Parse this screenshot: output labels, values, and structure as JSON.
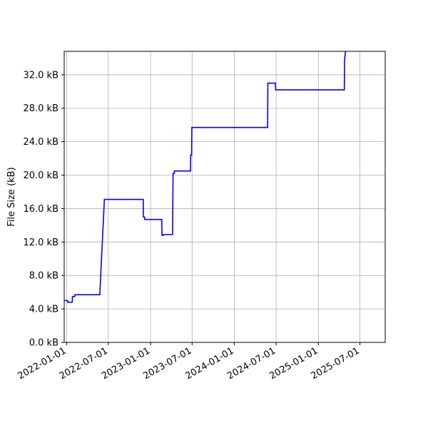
{
  "chart_data": {
    "type": "line",
    "title": "",
    "xlabel": "",
    "ylabel": "File Size (kB)",
    "x_scale": "date",
    "xlim": [
      "2021-12-21",
      "2025-10-19"
    ],
    "ylim": [
      0,
      34.8
    ],
    "grid": true,
    "legend": "none",
    "x_ticks": [
      "2022-01-01",
      "2022-07-01",
      "2023-01-01",
      "2023-07-01",
      "2024-01-01",
      "2024-07-01",
      "2025-01-01",
      "2025-07-01"
    ],
    "y_ticks": [
      0,
      4,
      8,
      12,
      16,
      20,
      24,
      28,
      32
    ],
    "y_tick_labels": [
      "0.0 kB",
      "4.0 kB",
      "8.0 kB",
      "12.0 kB",
      "16.0 kB",
      "20.0 kB",
      "24.0 kB",
      "28.0 kB",
      "32.0 kB"
    ],
    "series": [
      {
        "color": "#0000ff",
        "points": [
          [
            "2021-12-21",
            5.0
          ],
          [
            "2022-01-05",
            5.0
          ],
          [
            "2022-01-06",
            4.8
          ],
          [
            "2022-01-25",
            4.8
          ],
          [
            "2022-01-26",
            5.5
          ],
          [
            "2022-02-05",
            5.5
          ],
          [
            "2022-02-06",
            5.7
          ],
          [
            "2022-05-25",
            5.7
          ],
          [
            "2022-06-14",
            17.1
          ],
          [
            "2022-11-30",
            17.1
          ],
          [
            "2022-12-01",
            15.0
          ],
          [
            "2022-12-06",
            15.0
          ],
          [
            "2022-12-07",
            14.7
          ],
          [
            "2023-02-19",
            14.7
          ],
          [
            "2023-02-20",
            12.8
          ],
          [
            "2023-02-25",
            12.8
          ],
          [
            "2023-02-26",
            12.9
          ],
          [
            "2023-04-07",
            12.9
          ],
          [
            "2023-04-09",
            20.2
          ],
          [
            "2023-04-14",
            20.2
          ],
          [
            "2023-04-15",
            20.5
          ],
          [
            "2023-06-24",
            20.5
          ],
          [
            "2023-06-25",
            22.4
          ],
          [
            "2023-06-29",
            22.4
          ],
          [
            "2023-06-30",
            25.7
          ],
          [
            "2024-05-25",
            25.7
          ],
          [
            "2024-05-26",
            31.0
          ],
          [
            "2024-06-28",
            31.0
          ],
          [
            "2024-06-29",
            30.2
          ],
          [
            "2025-04-24",
            30.2
          ],
          [
            "2025-04-25",
            33.8
          ],
          [
            "2025-04-29",
            34.8
          ]
        ]
      }
    ]
  }
}
